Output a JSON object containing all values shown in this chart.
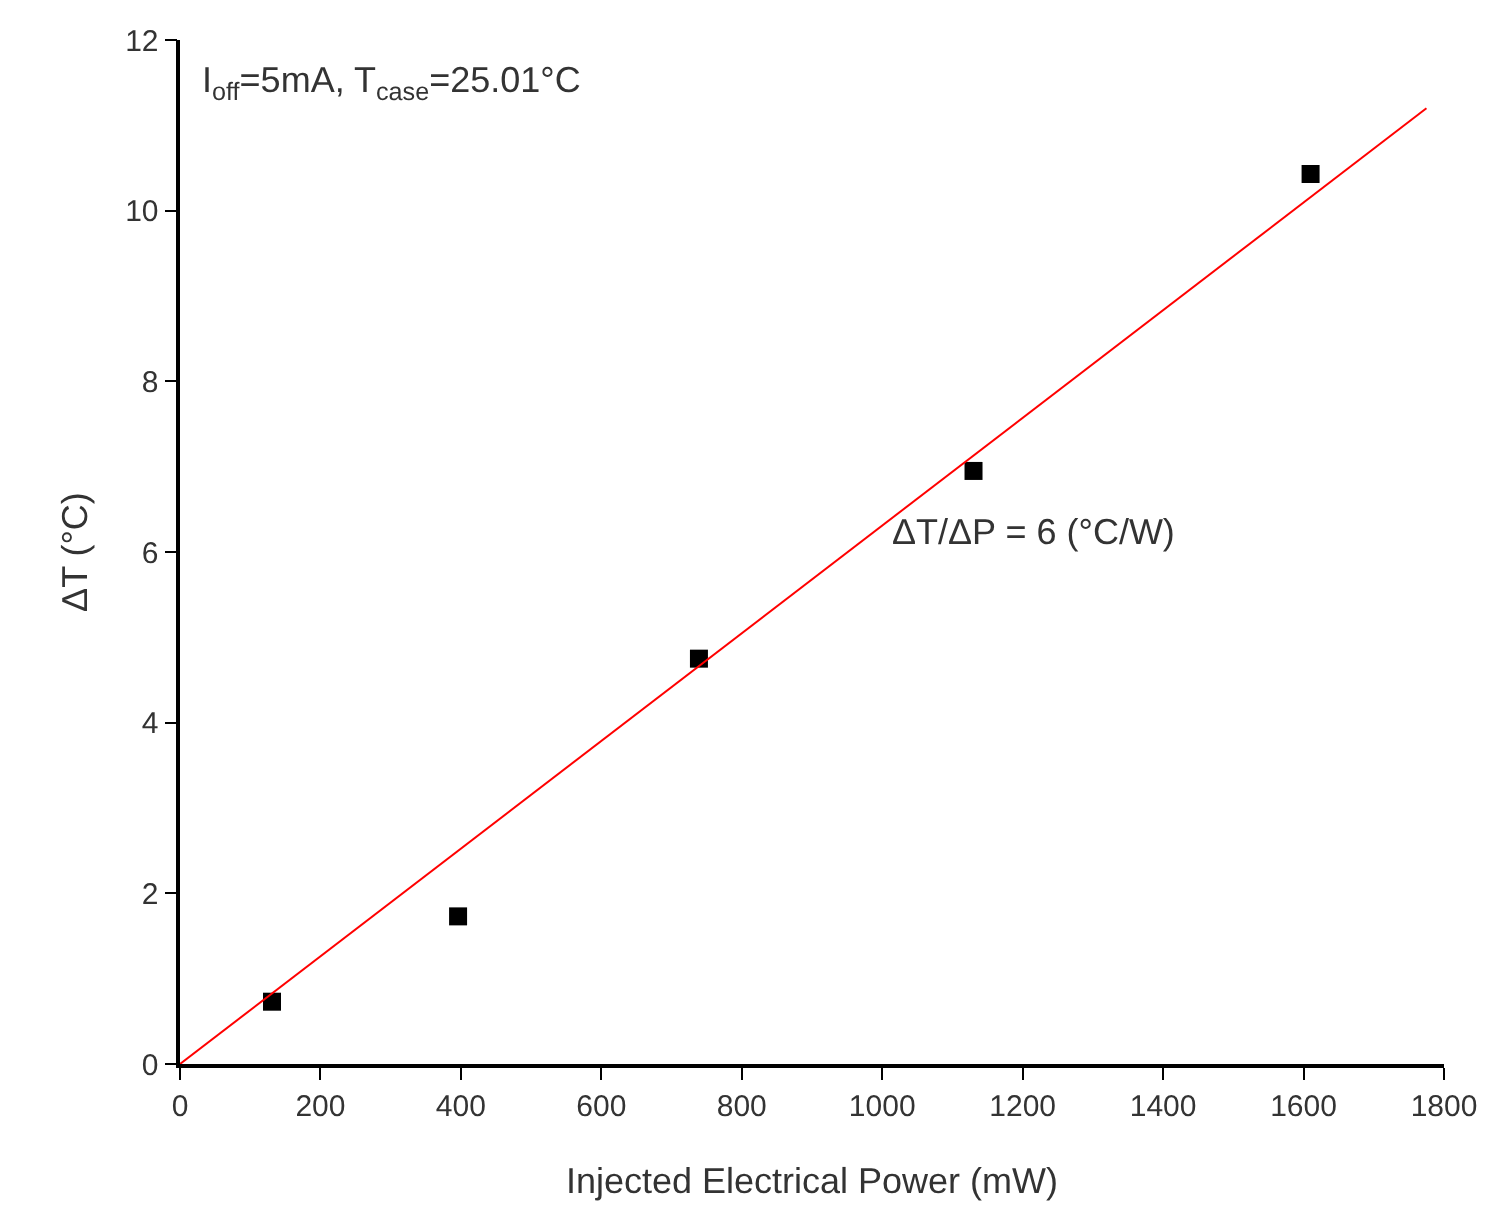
{
  "chart_data": {
    "type": "scatter",
    "xlabel": "Injected Electrical Power (mW)",
    "ylabel": "ΔT (°C)",
    "x": [
      131,
      396,
      739,
      1130,
      1610
    ],
    "series": [
      {
        "color": "#000000",
        "marker": "square",
        "values": [
          0.73,
          1.73,
          4.75,
          6.95,
          10.43
        ]
      },
      {
        "type": "line",
        "color": "#ff0000",
        "x": [
          0,
          1775
        ],
        "values": [
          0,
          11.2
        ],
        "marker": "none",
        "line_style": "solid"
      }
    ],
    "xlim": [
      0,
      1800
    ],
    "xticks": [
      0,
      200,
      400,
      600,
      800,
      1000,
      1200,
      1400,
      1600,
      1800
    ],
    "ylim": [
      0,
      12
    ],
    "yticks": [
      0,
      2,
      4,
      6,
      8,
      10,
      12
    ],
    "grid": false,
    "annotations": [
      "I$_{off}$=5mA, T$_{case}$=25.01°C",
      "ΔT/ΔP = 6 (°C/W)"
    ]
  }
}
